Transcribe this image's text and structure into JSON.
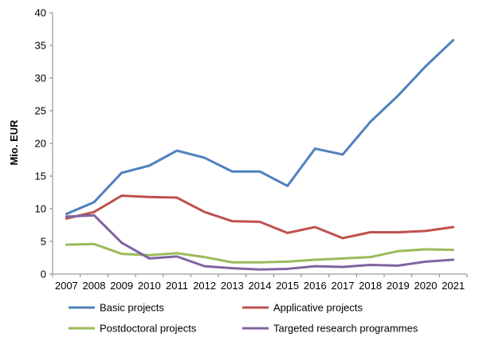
{
  "chart_data": {
    "type": "line",
    "title": "",
    "xlabel": "",
    "ylabel": "Mio. EUR",
    "x": [
      "2007",
      "2008",
      "2009",
      "2010",
      "2011",
      "2012",
      "2013",
      "2014",
      "2015",
      "2016",
      "2017",
      "2018",
      "2019",
      "2020",
      "2021"
    ],
    "ylim": [
      0,
      40
    ],
    "yticks": [
      0,
      5,
      10,
      15,
      20,
      25,
      30,
      35,
      40
    ],
    "grid": false,
    "legend_position": "bottom",
    "series": [
      {
        "name": "Basic projects",
        "color": "#4F81BD",
        "values": [
          9.2,
          11.0,
          15.5,
          16.6,
          18.9,
          17.8,
          15.7,
          15.7,
          13.5,
          19.2,
          18.3,
          23.3,
          27.3,
          31.8,
          35.8
        ]
      },
      {
        "name": "Applicative projects",
        "color": "#C0504D",
        "values": [
          8.5,
          9.5,
          12.0,
          11.8,
          11.7,
          9.5,
          8.1,
          8.0,
          6.3,
          7.2,
          5.5,
          6.4,
          6.4,
          6.6,
          7.2
        ]
      },
      {
        "name": "Postdoctoral projects",
        "color": "#9BBB59",
        "values": [
          4.5,
          4.6,
          3.1,
          2.9,
          3.2,
          2.6,
          1.8,
          1.8,
          1.9,
          2.2,
          2.4,
          2.6,
          3.5,
          3.8,
          3.7
        ]
      },
      {
        "name": "Targeted research programmes",
        "color": "#8064A2",
        "values": [
          8.8,
          9.0,
          4.8,
          2.4,
          2.7,
          1.2,
          0.9,
          0.7,
          0.8,
          1.2,
          1.1,
          1.4,
          1.3,
          1.9,
          2.2
        ]
      }
    ]
  }
}
